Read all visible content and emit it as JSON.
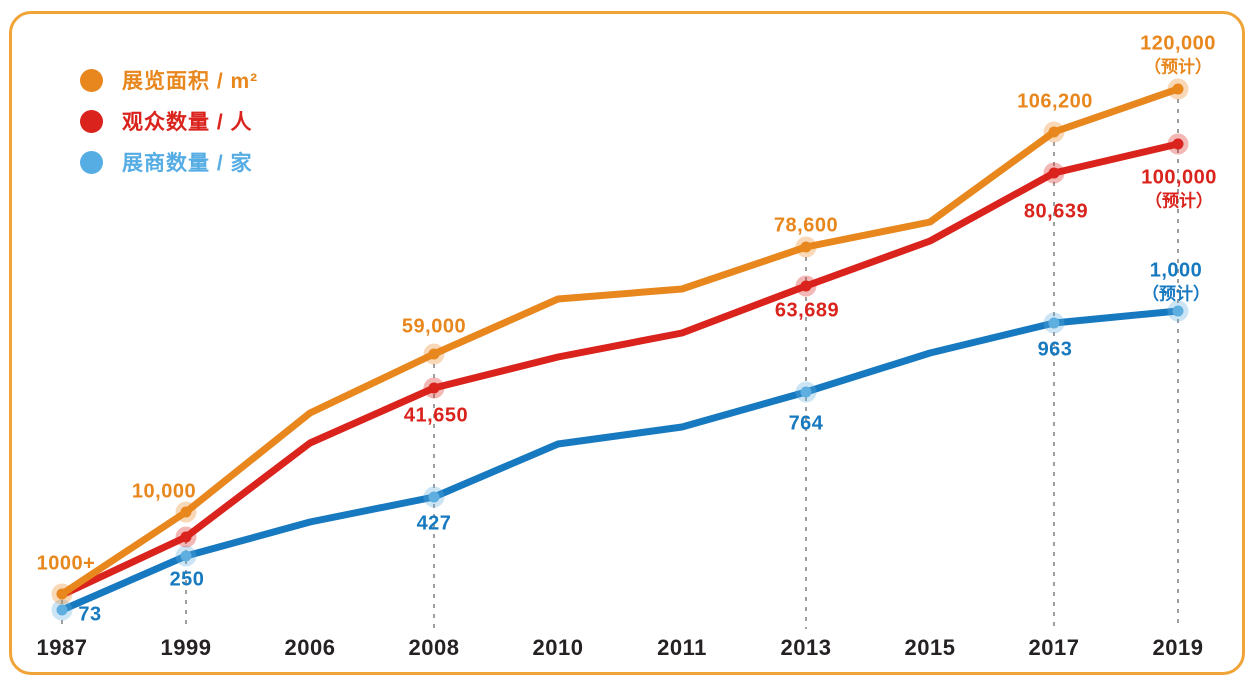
{
  "page": {
    "background": "#FFFFFF",
    "border_color": "#F0A437"
  },
  "legend": {
    "items": [
      {
        "id": "area",
        "label": "展览面积 / m²",
        "color": "#E8871D"
      },
      {
        "id": "visitors",
        "label": "观众数量 / 人",
        "color": "#D9231C"
      },
      {
        "id": "exhibitors",
        "label": "展商数量 / 家",
        "color": "#56ADE4"
      }
    ]
  },
  "x_axis": {
    "years": [
      "1987",
      "1999",
      "2006",
      "2008",
      "2010",
      "2011",
      "2013",
      "2015",
      "2017",
      "2019"
    ],
    "color": "#262223"
  },
  "chart_data": {
    "type": "line",
    "title": "",
    "x": [
      "1987",
      "1999",
      "2006",
      "2008",
      "2010",
      "2011",
      "2013",
      "2015",
      "2017",
      "2019"
    ],
    "legend_position": "top-left",
    "grid": "vertical dashed guides at labeled years only",
    "guide_color": "#9E9E9E",
    "note": "2019 values are forecasts (预计); series drawn schematically, each with its own scale",
    "series": [
      {
        "id": "area",
        "name": "展览面积 / m²",
        "unit": "㎡",
        "color": "#E8871D",
        "marker_color": "#E8871D",
        "values": [
          1000,
          10000,
          null,
          59000,
          null,
          null,
          78600,
          null,
          106200,
          120000
        ],
        "labels": [
          "1000+",
          "10,000",
          null,
          "59,000",
          null,
          null,
          "78,600",
          null,
          "106,200",
          "120,000"
        ],
        "sublabels": [
          null,
          null,
          null,
          null,
          null,
          null,
          null,
          null,
          null,
          "（预计）"
        ]
      },
      {
        "id": "visitors",
        "name": "观众数量 / 人",
        "unit": "人",
        "color": "#D9231C",
        "marker_color": "#D9231C",
        "values": [
          null,
          null,
          null,
          41650,
          null,
          null,
          63689,
          null,
          80639,
          100000
        ],
        "labels": [
          null,
          null,
          null,
          "41,650",
          null,
          null,
          "63,689",
          null,
          "80,639",
          "100,000"
        ],
        "sublabels": [
          null,
          null,
          null,
          null,
          null,
          null,
          null,
          null,
          null,
          "（预计）"
        ]
      },
      {
        "id": "exhibitors",
        "name": "展商数量 / 家",
        "unit": "家",
        "color": "#1779BF",
        "marker_color": "#5FAEE0",
        "values": [
          73,
          250,
          null,
          427,
          null,
          null,
          764,
          null,
          963,
          1000
        ],
        "labels": [
          "73",
          "250",
          null,
          "427",
          null,
          null,
          "764",
          null,
          "963",
          "1,000"
        ],
        "sublabels": [
          null,
          null,
          null,
          null,
          null,
          null,
          null,
          null,
          null,
          "（预计）"
        ]
      }
    ]
  }
}
